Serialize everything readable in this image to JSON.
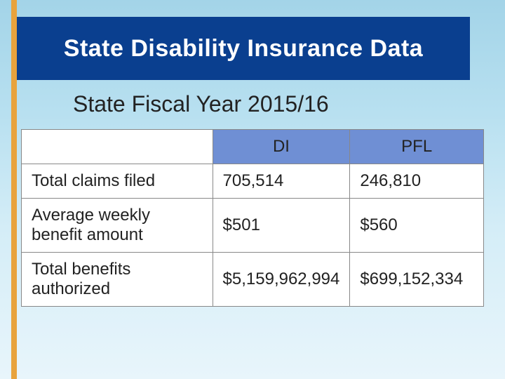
{
  "accent_bar_color": "#e8a33d",
  "title": {
    "text": "State Disability Insurance Data",
    "background_color": "#0a3f8f",
    "text_color": "#ffffff",
    "fontsize": 34
  },
  "subtitle": {
    "text": "State Fiscal Year 2015/16",
    "fontsize": 32,
    "color": "#222222"
  },
  "table": {
    "header_bg": "#6f8fd4",
    "header_text_color": "#222222",
    "border_color": "#888888",
    "cell_bg": "#ffffff",
    "fontsize": 24,
    "columns": [
      "",
      "DI",
      "PFL"
    ],
    "rows": [
      {
        "label": "Total claims filed",
        "di": "705,514",
        "pfl": "246,810"
      },
      {
        "label": "Average weekly benefit amount",
        "di": "$501",
        "pfl": "$560"
      },
      {
        "label": "Total benefits authorized",
        "di": "$5,159,962,994",
        "pfl": "$699,152,334"
      }
    ]
  }
}
